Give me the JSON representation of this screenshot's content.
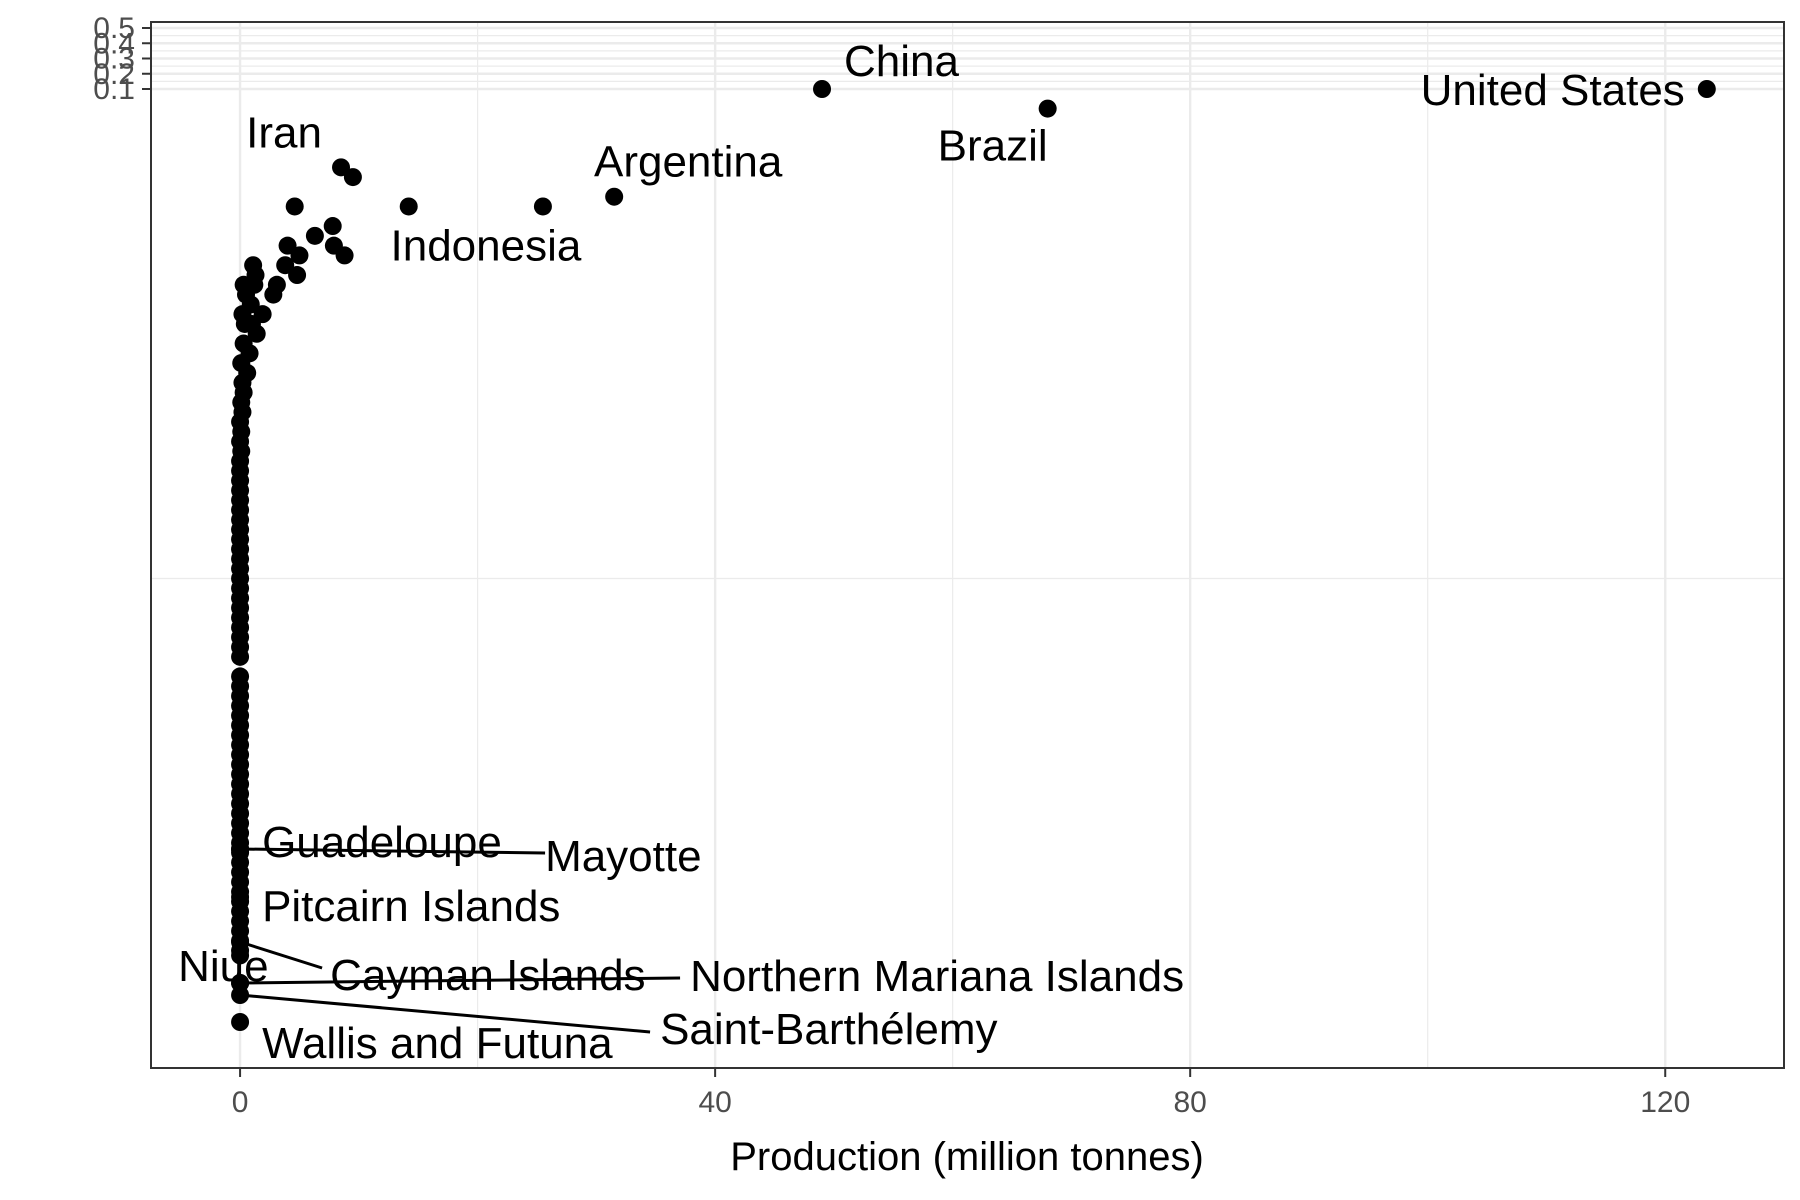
{
  "chart_data": {
    "type": "scatter",
    "title": "",
    "xlabel": "Production (million tonnes)",
    "ylabel": "",
    "xlim": [
      -7.5,
      130
    ],
    "x_ticks": [
      0,
      40,
      80,
      120
    ],
    "x_tick_labels": [
      "0",
      "40",
      "80",
      "120"
    ],
    "y_ticks": [
      0.1,
      0.2,
      0.3,
      0.4,
      0.5
    ],
    "y_tick_labels": [
      "0.1",
      "0.2",
      "0.3",
      "0.4",
      "0.5"
    ],
    "grid": true,
    "colors": {
      "point": "#000000",
      "grid": "#ebebeb",
      "panel_border": "#333333",
      "tick_text": "#4d4d4d"
    },
    "labeled_points": [
      {
        "name": "United States",
        "x": 123.5,
        "y": 0.1
      },
      {
        "name": "China",
        "x": 49.0,
        "y": 0.1
      },
      {
        "name": "Brazil",
        "x": 68.0,
        "y": 0.098
      },
      {
        "name": "Argentina",
        "x": 31.5,
        "y": 0.089
      },
      {
        "name": "Indonesia",
        "x": 25.5,
        "y": 0.088
      },
      {
        "name": "Iran",
        "x": 8.5,
        "y": 0.092
      },
      {
        "name": "Guadeloupe",
        "x": 0.0,
        "y": 0.011
      },
      {
        "name": "Mayotte",
        "x": 0.0,
        "y": 0.0105
      },
      {
        "name": "Pitcairn Islands",
        "x": 0.0,
        "y": 0.0085
      },
      {
        "name": "Cayman Islands",
        "x": 0.0,
        "y": 0.0065
      },
      {
        "name": "Niue",
        "x": 0.0,
        "y": 0.0055
      },
      {
        "name": "Northern Mariana Islands",
        "x": 0.0,
        "y": 0.005
      },
      {
        "name": "Saint-Barthélemy",
        "x": 0.0,
        "y": 0.0045
      },
      {
        "name": "Wallis and Futuna",
        "x": 0.0,
        "y": 0.003
      }
    ],
    "other_points": [
      {
        "x": 9.5,
        "y": 0.091
      },
      {
        "x": 14.2,
        "y": 0.088
      },
      {
        "x": 4.6,
        "y": 0.088
      },
      {
        "x": 7.8,
        "y": 0.086
      },
      {
        "x": 6.3,
        "y": 0.085
      },
      {
        "x": 7.9,
        "y": 0.084
      },
      {
        "x": 4.0,
        "y": 0.084
      },
      {
        "x": 8.8,
        "y": 0.083
      },
      {
        "x": 5.0,
        "y": 0.083
      },
      {
        "x": 3.8,
        "y": 0.082
      },
      {
        "x": 1.1,
        "y": 0.082
      },
      {
        "x": 4.8,
        "y": 0.081
      },
      {
        "x": 1.3,
        "y": 0.081
      },
      {
        "x": 3.1,
        "y": 0.08
      },
      {
        "x": 0.3,
        "y": 0.08
      },
      {
        "x": 1.2,
        "y": 0.08
      },
      {
        "x": 2.8,
        "y": 0.079
      },
      {
        "x": 0.5,
        "y": 0.079
      },
      {
        "x": 0.9,
        "y": 0.078
      },
      {
        "x": 1.9,
        "y": 0.077
      },
      {
        "x": 0.2,
        "y": 0.077
      },
      {
        "x": 1.0,
        "y": 0.076
      },
      {
        "x": 0.4,
        "y": 0.076
      },
      {
        "x": 1.4,
        "y": 0.075
      },
      {
        "x": 0.3,
        "y": 0.074
      },
      {
        "x": 0.8,
        "y": 0.073
      },
      {
        "x": 0.1,
        "y": 0.072
      },
      {
        "x": 0.6,
        "y": 0.071
      },
      {
        "x": 0.2,
        "y": 0.07
      },
      {
        "x": 0.3,
        "y": 0.069
      },
      {
        "x": 0.1,
        "y": 0.068
      },
      {
        "x": 0.2,
        "y": 0.067
      },
      {
        "x": 0.0,
        "y": 0.066
      },
      {
        "x": 0.1,
        "y": 0.065
      },
      {
        "x": 0.0,
        "y": 0.064
      },
      {
        "x": 0.1,
        "y": 0.063
      },
      {
        "x": 0.0,
        "y": 0.062
      },
      {
        "x": 0.0,
        "y": 0.061
      },
      {
        "x": 0.0,
        "y": 0.06
      },
      {
        "x": 0.0,
        "y": 0.059
      },
      {
        "x": 0.0,
        "y": 0.058
      },
      {
        "x": 0.0,
        "y": 0.057
      },
      {
        "x": 0.0,
        "y": 0.056
      },
      {
        "x": 0.0,
        "y": 0.055
      },
      {
        "x": 0.0,
        "y": 0.054
      },
      {
        "x": 0.0,
        "y": 0.053
      },
      {
        "x": 0.0,
        "y": 0.052
      },
      {
        "x": 0.0,
        "y": 0.051
      },
      {
        "x": 0.0,
        "y": 0.05
      },
      {
        "x": 0.0,
        "y": 0.049
      },
      {
        "x": 0.0,
        "y": 0.048
      },
      {
        "x": 0.0,
        "y": 0.047
      },
      {
        "x": 0.0,
        "y": 0.046
      },
      {
        "x": 0.0,
        "y": 0.045
      },
      {
        "x": 0.0,
        "y": 0.044
      },
      {
        "x": 0.0,
        "y": 0.043
      },
      {
        "x": 0.0,
        "y": 0.042
      },
      {
        "x": 0.0,
        "y": 0.04
      },
      {
        "x": 0.0,
        "y": 0.039
      },
      {
        "x": 0.0,
        "y": 0.038
      },
      {
        "x": 0.0,
        "y": 0.037
      },
      {
        "x": 0.0,
        "y": 0.036
      },
      {
        "x": 0.0,
        "y": 0.035
      },
      {
        "x": 0.0,
        "y": 0.034
      },
      {
        "x": 0.0,
        "y": 0.033
      },
      {
        "x": 0.0,
        "y": 0.032
      },
      {
        "x": 0.0,
        "y": 0.031
      },
      {
        "x": 0.0,
        "y": 0.03
      },
      {
        "x": 0.0,
        "y": 0.029
      },
      {
        "x": 0.0,
        "y": 0.028
      },
      {
        "x": 0.0,
        "y": 0.027
      },
      {
        "x": 0.0,
        "y": 0.026
      },
      {
        "x": 0.0,
        "y": 0.025
      },
      {
        "x": 0.0,
        "y": 0.024
      },
      {
        "x": 0.0,
        "y": 0.023
      },
      {
        "x": 0.0,
        "y": 0.022
      },
      {
        "x": 0.0,
        "y": 0.021
      },
      {
        "x": 0.0,
        "y": 0.02
      },
      {
        "x": 0.0,
        "y": 0.019
      },
      {
        "x": 0.0,
        "y": 0.018
      },
      {
        "x": 0.0,
        "y": 0.017
      },
      {
        "x": 0.0,
        "y": 0.016
      },
      {
        "x": 0.0,
        "y": 0.015
      },
      {
        "x": 0.0,
        "y": 0.014
      },
      {
        "x": 0.0,
        "y": 0.013
      },
      {
        "x": 0.0,
        "y": 0.012
      },
      {
        "x": 0.0,
        "y": 0.0115
      }
    ]
  }
}
